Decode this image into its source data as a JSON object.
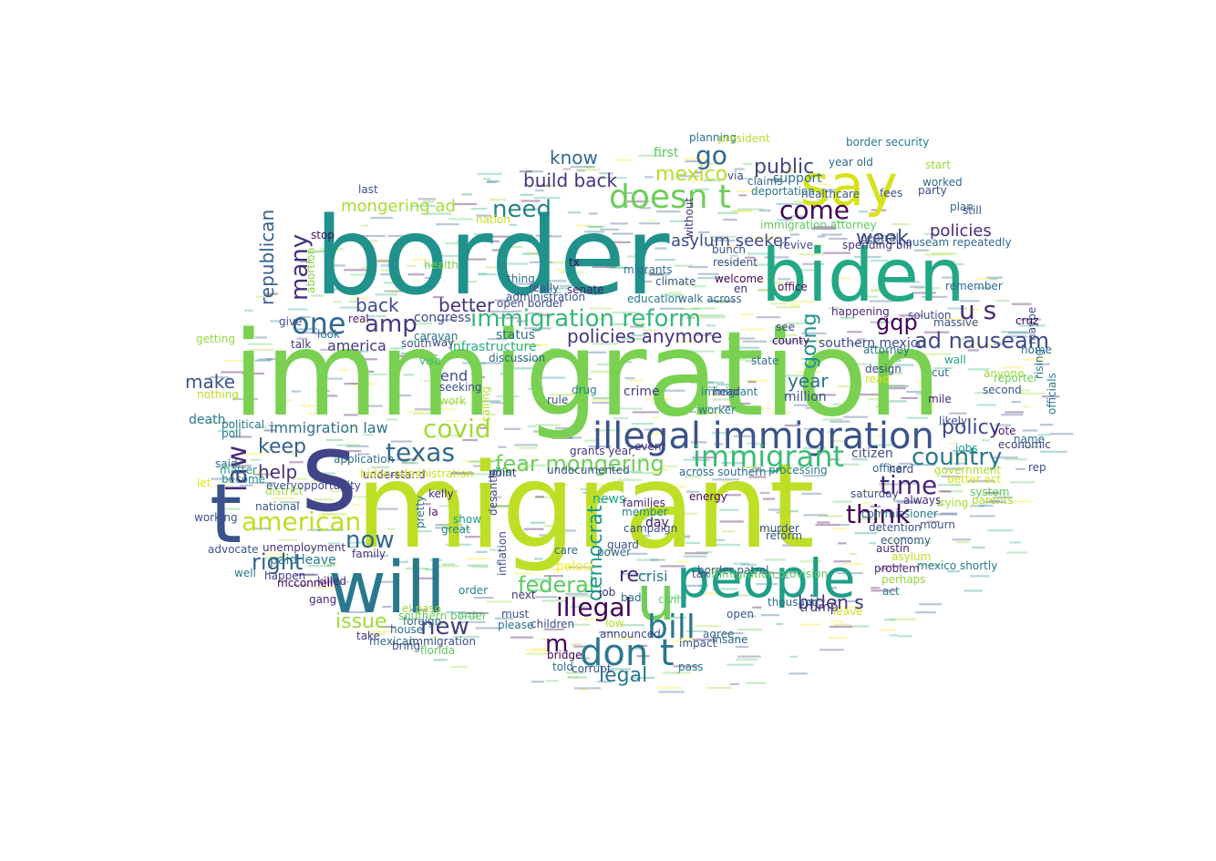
{
  "words": [
    {
      "text": "immigration",
      "color": "#7ad151"
    },
    {
      "text": "border",
      "color": "#21918c"
    },
    {
      "text": "migrant",
      "color": "#bddf26"
    },
    {
      "text": "s",
      "color": "#414487"
    },
    {
      "text": "biden",
      "color": "#22a884"
    },
    {
      "text": "will",
      "color": "#2a788e"
    },
    {
      "text": "say",
      "color": "#d8e219"
    },
    {
      "text": "t",
      "color": "#3b528b"
    },
    {
      "text": "people",
      "color": "#1f9e89"
    },
    {
      "text": "u",
      "color": "#6ece58"
    },
    {
      "text": "illegal immigration",
      "color": "#3b528b"
    },
    {
      "text": "immigrant",
      "color": "#3bbb75"
    },
    {
      "text": "doesn t",
      "color": "#6ece58"
    },
    {
      "text": "don t",
      "color": "#2a788e"
    },
    {
      "text": "one",
      "color": "#31688e"
    },
    {
      "text": "amp",
      "color": "#443983"
    },
    {
      "text": "immigration reform",
      "color": "#35b779"
    },
    {
      "text": "law",
      "color": "#482878"
    },
    {
      "text": "bill",
      "color": "#2a788e"
    },
    {
      "text": "fear mongering",
      "color": "#6ece58"
    },
    {
      "text": "country",
      "color": "#2a788e"
    },
    {
      "text": "texas",
      "color": "#31688e"
    },
    {
      "text": "american",
      "color": "#bddf26"
    },
    {
      "text": "covid",
      "color": "#a0da39"
    },
    {
      "text": "think",
      "color": "#440154"
    },
    {
      "text": "time",
      "color": "#482475"
    },
    {
      "text": "need",
      "color": "#26828e"
    },
    {
      "text": "go",
      "color": "#31688e"
    },
    {
      "text": "come",
      "color": "#440154"
    },
    {
      "text": "new",
      "color": "#433e85"
    },
    {
      "text": "illegal",
      "color": "#440154"
    },
    {
      "text": "policies anymore",
      "color": "#46327e"
    },
    {
      "text": "ad nauseam",
      "color": "#3e4a89"
    },
    {
      "text": "mexico",
      "color": "#b5de2b"
    },
    {
      "text": "public",
      "color": "#414487"
    },
    {
      "text": "week",
      "color": "#3e4989"
    },
    {
      "text": "gqp",
      "color": "#440154"
    },
    {
      "text": "u s",
      "color": "#482878"
    },
    {
      "text": "policy",
      "color": "#3e4989"
    },
    {
      "text": "now",
      "color": "#31688e"
    },
    {
      "text": "back",
      "color": "#3e4a89"
    },
    {
      "text": "many",
      "color": "#472d7b"
    },
    {
      "text": "republican",
      "color": "#355f8d"
    },
    {
      "text": "legal",
      "color": "#2a788e"
    },
    {
      "text": "federal",
      "color": "#5ec962"
    },
    {
      "text": "m",
      "color": "#440154"
    },
    {
      "text": "issue",
      "color": "#a0da39"
    },
    {
      "text": "right",
      "color": "#34618d"
    },
    {
      "text": "democrat",
      "color": "#1f988b"
    },
    {
      "text": "make",
      "color": "#3b528b"
    },
    {
      "text": "keep",
      "color": "#355f8d"
    },
    {
      "text": "help",
      "color": "#472f7d"
    },
    {
      "text": "year",
      "color": "#2c728e"
    },
    {
      "text": "build back",
      "color": "#46337f"
    },
    {
      "text": "immigration law",
      "color": "#2d708e"
    },
    {
      "text": "mongering ad",
      "color": "#a8db34"
    },
    {
      "text": "know",
      "color": "#31688e"
    },
    {
      "text": "going",
      "color": "#21918c"
    },
    {
      "text": "better",
      "color": "#46327e"
    },
    {
      "text": "policies",
      "color": "#482979"
    },
    {
      "text": "biden s",
      "color": "#46337f"
    },
    {
      "text": "asylum seeker",
      "color": "#3e4989"
    },
    {
      "text": "re",
      "color": "#482576"
    },
    {
      "text": "end",
      "color": "#3e4c8a"
    },
    {
      "text": "america",
      "color": "#443983"
    },
    {
      "text": "crisi",
      "color": "#2a788e"
    },
    {
      "text": "paid leave",
      "color": "#29798e"
    },
    {
      "text": "death",
      "color": "#2b748e"
    },
    {
      "text": "million",
      "color": "#3c4f8a"
    },
    {
      "text": "infrastructure",
      "color": "#26ad81"
    },
    {
      "text": "status",
      "color": "#2c738e"
    },
    {
      "text": "congress",
      "color": "#3f4889"
    },
    {
      "text": "trump",
      "color": "#472d7b"
    },
    {
      "text": "southern mexico",
      "color": "#3e4a89"
    },
    {
      "text": "crime",
      "color": "#443a83"
    },
    {
      "text": "citizen",
      "color": "#3d4e8a"
    },
    {
      "text": "first",
      "color": "#5cc863"
    },
    {
      "text": "support",
      "color": "#2d718e"
    },
    {
      "text": "healthcare",
      "color": "#38598c"
    },
    {
      "text": "detention",
      "color": "#3a548c"
    },
    {
      "text": "economy",
      "color": "#3b528b"
    },
    {
      "text": "state",
      "color": "#2f6c8e"
    },
    {
      "text": "news",
      "color": "#22a785"
    },
    {
      "text": "immigrant",
      "color": "#2b758e"
    },
    {
      "text": "family",
      "color": "#472f7d"
    },
    {
      "text": "national",
      "color": "#3a538b"
    },
    {
      "text": "pelosi",
      "color": "#fde725"
    },
    {
      "text": "border patrol",
      "color": "#38588c"
    },
    {
      "text": "officer",
      "color": "#31678e"
    },
    {
      "text": "next",
      "color": "#46317e"
    },
    {
      "text": "nation",
      "color": "#c2df23"
    },
    {
      "text": "visa",
      "color": "#3bbb75"
    },
    {
      "text": "wall",
      "color": "#20a386"
    },
    {
      "text": "vote",
      "color": "#48186a"
    },
    {
      "text": "worker",
      "color": "#2a768e"
    },
    {
      "text": "work",
      "color": "#9bd93c"
    },
    {
      "text": "office",
      "color": "#471063"
    },
    {
      "text": "health",
      "color": "#7fd34e"
    },
    {
      "text": "order",
      "color": "#25858e"
    },
    {
      "text": "house",
      "color": "#2e6d8e"
    },
    {
      "text": "senate",
      "color": "#481a6c"
    },
    {
      "text": "rule",
      "color": "#3d4d8a"
    },
    {
      "text": "plan",
      "color": "#31688e"
    },
    {
      "text": "party",
      "color": "#3e4c8a"
    },
    {
      "text": "children",
      "color": "#3f4788"
    },
    {
      "text": "leave",
      "color": "#d0e11c"
    },
    {
      "text": "job",
      "color": "#472e7c"
    },
    {
      "text": "care",
      "color": "#31688e"
    },
    {
      "text": "day",
      "color": "#48186a"
    },
    {
      "text": "last",
      "color": "#3b528b"
    },
    {
      "text": "way",
      "color": "#404588"
    },
    {
      "text": "migrants",
      "color": "#2e6e8e"
    },
    {
      "text": "drug",
      "color": "#26828e"
    },
    {
      "text": "education",
      "color": "#297b8e"
    },
    {
      "text": "families",
      "color": "#482173"
    },
    {
      "text": "campaign",
      "color": "#3d4e8a"
    },
    {
      "text": "member",
      "color": "#277f8e"
    },
    {
      "text": "energy",
      "color": "#46085c"
    },
    {
      "text": "climate",
      "color": "#3b528b"
    },
    {
      "text": "tax",
      "color": "#3d4d8a"
    },
    {
      "text": "jobs",
      "color": "#1fa187"
    },
    {
      "text": "give",
      "color": "#3e4c8a"
    },
    {
      "text": "getting",
      "color": "#95d840"
    },
    {
      "text": "nothing",
      "color": "#b8de29"
    },
    {
      "text": "talk",
      "color": "#46307e"
    },
    {
      "text": "look",
      "color": "#2b758e"
    },
    {
      "text": "real",
      "color": "#482475"
    },
    {
      "text": "stop",
      "color": "#471164"
    },
    {
      "text": "abortion",
      "color": "#86d549"
    },
    {
      "text": "district",
      "color": "#a2da37"
    },
    {
      "text": "opportunity",
      "color": "#3e4a89"
    },
    {
      "text": "application",
      "color": "#2f6c8e"
    },
    {
      "text": "understand",
      "color": "#481b6d"
    },
    {
      "text": "political",
      "color": "#2c728e"
    },
    {
      "text": "poll",
      "color": "#29798e"
    },
    {
      "text": "let",
      "color": "#e5e419"
    },
    {
      "text": "every",
      "color": "#38598c"
    },
    {
      "text": "become",
      "color": "#21918c"
    },
    {
      "text": "matter",
      "color": "#1e9b8a"
    },
    {
      "text": "said",
      "color": "#2e6e8e"
    },
    {
      "text": "working",
      "color": "#3a538b"
    },
    {
      "text": "advocate",
      "color": "#3b528b"
    },
    {
      "text": "unemployment",
      "color": "#46337f"
    },
    {
      "text": "mcconnell",
      "color": "#440154"
    },
    {
      "text": "killed",
      "color": "#482878"
    },
    {
      "text": "happen",
      "color": "#443983"
    },
    {
      "text": "take",
      "color": "#443a83"
    },
    {
      "text": "well",
      "color": "#2a768e"
    },
    {
      "text": "gang",
      "color": "#482878"
    },
    {
      "text": "pretty",
      "color": "#2d708e"
    },
    {
      "text": "kelly",
      "color": "#472a7a"
    },
    {
      "text": "la",
      "color": "#471365"
    },
    {
      "text": "show",
      "color": "#1f978b"
    },
    {
      "text": "great",
      "color": "#238a8d"
    },
    {
      "text": "dhs",
      "color": "#29af7f"
    },
    {
      "text": "desantis",
      "color": "#3e4989"
    },
    {
      "text": "calling",
      "color": "#b5de2b"
    },
    {
      "text": "point",
      "color": "#46327e"
    },
    {
      "text": "undocumented",
      "color": "#3b528b"
    },
    {
      "text": "grants year",
      "color": "#46337f"
    },
    {
      "text": "event",
      "color": "#443983"
    },
    {
      "text": "across southern",
      "color": "#31688e"
    },
    {
      "text": "processing",
      "color": "#2a788e"
    },
    {
      "text": "biden administration",
      "color": "#cae11f"
    },
    {
      "text": "immigration provision",
      "color": "#5ec962"
    },
    {
      "text": "government",
      "color": "#addc30"
    },
    {
      "text": "better act",
      "color": "#d5e21a"
    },
    {
      "text": "asylum",
      "color": "#bddf26"
    },
    {
      "text": "mexico shortly",
      "color": "#2a788e"
    },
    {
      "text": "problem",
      "color": "#472c7a"
    },
    {
      "text": "perhaps",
      "color": "#93d741"
    },
    {
      "text": "act",
      "color": "#2a788e"
    },
    {
      "text": "austin",
      "color": "#482878"
    },
    {
      "text": "hard",
      "color": "#3e4989"
    },
    {
      "text": "trying",
      "color": "#a8db34"
    },
    {
      "text": "always",
      "color": "#472d7b"
    },
    {
      "text": "saturday",
      "color": "#3e4c8a"
    },
    {
      "text": "commissioner",
      "color": "#2a788e"
    },
    {
      "text": "system",
      "color": "#5ec962"
    },
    {
      "text": "parents",
      "color": "#addc30"
    },
    {
      "text": "economic",
      "color": "#453882"
    },
    {
      "text": "name",
      "color": "#2a768e"
    },
    {
      "text": "reporter",
      "color": "#6ece58"
    },
    {
      "text": "second",
      "color": "#3b528b"
    },
    {
      "text": "rising",
      "color": "#2c728e"
    },
    {
      "text": "officials",
      "color": "#2a788e"
    },
    {
      "text": "maybe",
      "color": "#3b528b"
    },
    {
      "text": "anyone",
      "color": "#a0da39"
    },
    {
      "text": "home",
      "color": "#31688e"
    },
    {
      "text": "likely",
      "color": "#3e4989"
    },
    {
      "text": "mile",
      "color": "#472d7b"
    },
    {
      "text": "cut",
      "color": "#31688e"
    },
    {
      "text": "design",
      "color": "#3e4c8a"
    },
    {
      "text": "read",
      "color": "#d8e219"
    },
    {
      "text": "attorney",
      "color": "#2c728e"
    },
    {
      "text": "cruz",
      "color": "#440154"
    },
    {
      "text": "massive",
      "color": "#3b528b"
    },
    {
      "text": "solution",
      "color": "#3e4989"
    },
    {
      "text": "happening",
      "color": "#482878"
    },
    {
      "text": "central",
      "color": "#3b528b"
    },
    {
      "text": "nauseam repeatedly",
      "color": "#31688e"
    },
    {
      "text": "revive",
      "color": "#3e4c8a"
    },
    {
      "text": "spending bill",
      "color": "#46337f"
    },
    {
      "text": "immigration attorney",
      "color": "#5ec962"
    },
    {
      "text": "deportation",
      "color": "#2a788e"
    },
    {
      "text": "claims",
      "color": "#31688e"
    },
    {
      "text": "fees",
      "color": "#3b528b"
    },
    {
      "text": "worked",
      "color": "#31688e"
    },
    {
      "text": "start",
      "color": "#a0da39"
    },
    {
      "text": "still",
      "color": "#3b528b"
    },
    {
      "text": "year old",
      "color": "#31688e"
    },
    {
      "text": "border security",
      "color": "#2a788e"
    },
    {
      "text": "planning",
      "color": "#2c728e"
    },
    {
      "text": "president",
      "color": "#b5de2b"
    },
    {
      "text": "via",
      "color": "#3e4989"
    },
    {
      "text": "without",
      "color": "#472d7b"
    },
    {
      "text": "bunch",
      "color": "#3b528b"
    },
    {
      "text": "resident",
      "color": "#3e4c8a"
    },
    {
      "text": "welcome",
      "color": "#440154"
    },
    {
      "text": "en",
      "color": "#482878"
    },
    {
      "text": "walk across",
      "color": "#31688e"
    },
    {
      "text": "tx",
      "color": "#440154"
    },
    {
      "text": "administration",
      "color": "#3b528b"
    },
    {
      "text": "open border",
      "color": "#3e4989"
    },
    {
      "text": "caravan",
      "color": "#2c728e"
    },
    {
      "text": "south",
      "color": "#3b528b"
    },
    {
      "text": "discussion",
      "color": "#31688e"
    },
    {
      "text": "seeking",
      "color": "#3e4c8a"
    },
    {
      "text": "really",
      "color": "#3b528b"
    },
    {
      "text": "thing",
      "color": "#31688e"
    },
    {
      "text": "inflation",
      "color": "#3e4989"
    },
    {
      "text": "please",
      "color": "#2c728e"
    },
    {
      "text": "must",
      "color": "#3b528b"
    },
    {
      "text": "el paso",
      "color": "#a0da39"
    },
    {
      "text": "foreign",
      "color": "#31688e"
    },
    {
      "text": "immigration",
      "color": "#3e4c8a"
    },
    {
      "text": "florida",
      "color": "#5ec962"
    },
    {
      "text": "southern border",
      "color": "#5ec962"
    },
    {
      "text": "mexican",
      "color": "#31688e"
    },
    {
      "text": "bring",
      "color": "#3b528b"
    },
    {
      "text": "low",
      "color": "#b5de2b"
    },
    {
      "text": "announced",
      "color": "#3e4989"
    },
    {
      "text": "bridge",
      "color": "#440154"
    },
    {
      "text": "told",
      "color": "#2c728e"
    },
    {
      "text": "corrupt",
      "color": "#3b528b"
    },
    {
      "text": "power",
      "color": "#31688e"
    },
    {
      "text": "guard",
      "color": "#3e4c8a"
    },
    {
      "text": "bad",
      "color": "#31688e"
    },
    {
      "text": "civil",
      "color": "#5ec962"
    },
    {
      "text": "open",
      "color": "#3b528b"
    },
    {
      "text": "agree",
      "color": "#31688e"
    },
    {
      "text": "head",
      "color": "#3e4989"
    },
    {
      "text": "pass",
      "color": "#2a788e"
    },
    {
      "text": "impact",
      "color": "#3b528b"
    },
    {
      "text": "insane",
      "color": "#31688e"
    },
    {
      "text": "murder",
      "color": "#3e4c8a"
    },
    {
      "text": "reform",
      "color": "#3b528b"
    },
    {
      "text": "thousand",
      "color": "#31688e"
    },
    {
      "text": "see",
      "color": "#3e4989"
    },
    {
      "text": "county",
      "color": "#440154"
    },
    {
      "text": "mourn",
      "color": "#3b528b"
    },
    {
      "text": "remember",
      "color": "#31688e"
    },
    {
      "text": "rep",
      "color": "#3e4c8a"
    }
  ]
}
